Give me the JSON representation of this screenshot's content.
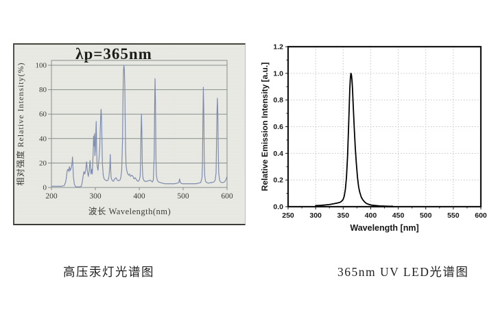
{
  "mercury": {
    "caption": "高压汞灯光谱图",
    "title": "λp=365nm"
  },
  "led": {
    "caption": "365nm UV LED光谱图"
  },
  "colors": {
    "scan_background": "#e9e9e3",
    "scan_border": "#45443d",
    "mercury_grid": "#868f8c",
    "mercury_curve": "#7d8cae",
    "mercury_text": "#3a3a36",
    "led_frame": "#141414",
    "led_grid": "#c4c4c4",
    "led_curve": "#000000",
    "led_text": "#161616"
  },
  "chart_data": [
    {
      "type": "line",
      "title": "λp=365nm",
      "xlabel": "波长    Wavelength(nm)",
      "ylabel": "相对强度   Relative  Intensity(%)",
      "xlim": [
        200,
        600
      ],
      "ylim": [
        0,
        100
      ],
      "xticks": [
        200,
        300,
        400,
        500,
        600
      ],
      "yticks": [
        0,
        20,
        40,
        60,
        80,
        100
      ],
      "grid": "horizontal",
      "legend": "none",
      "series": [
        {
          "name": "高压汞灯光谱 (high-pressure mercury lamp spectrum)",
          "points": [
            [
              200,
              1
            ],
            [
              212,
              1
            ],
            [
              224,
              1
            ],
            [
              229,
              1.5
            ],
            [
              232,
              4
            ],
            [
              234,
              8
            ],
            [
              236,
              14
            ],
            [
              238,
              15
            ],
            [
              240,
              13
            ],
            [
              241,
              17
            ],
            [
              243,
              14
            ],
            [
              245,
              16
            ],
            [
              247,
              20
            ],
            [
              248,
              25
            ],
            [
              249,
              17
            ],
            [
              250,
              9
            ],
            [
              252,
              3
            ],
            [
              254,
              1
            ],
            [
              257,
              0.5
            ],
            [
              261,
              0.5
            ],
            [
              265,
              0.5
            ],
            [
              268,
              1
            ],
            [
              270,
              4
            ],
            [
              272,
              9
            ],
            [
              274,
              13
            ],
            [
              276,
              11
            ],
            [
              278,
              14
            ],
            [
              280,
              21
            ],
            [
              282,
              13
            ],
            [
              284,
              9
            ],
            [
              286,
              14
            ],
            [
              288,
              22
            ],
            [
              290,
              11
            ],
            [
              292,
              15
            ],
            [
              293,
              11
            ],
            [
              295,
              28
            ],
            [
              296,
              42
            ],
            [
              297,
              34
            ],
            [
              298,
              44
            ],
            [
              299,
              26
            ],
            [
              300,
              31
            ],
            [
              301,
              44
            ],
            [
              302,
              54
            ],
            [
              303,
              30
            ],
            [
              304,
              18
            ],
            [
              306,
              14
            ],
            [
              308,
              22
            ],
            [
              310,
              32
            ],
            [
              311,
              45
            ],
            [
              312,
              56
            ],
            [
              313,
              64
            ],
            [
              314,
              58
            ],
            [
              315,
              40
            ],
            [
              316,
              20
            ],
            [
              318,
              10
            ],
            [
              320,
              7
            ],
            [
              323,
              6
            ],
            [
              326,
              5.5
            ],
            [
              329,
              6
            ],
            [
              331,
              9
            ],
            [
              333,
              17
            ],
            [
              334,
              27
            ],
            [
              335,
              14
            ],
            [
              336,
              8
            ],
            [
              338,
              6
            ],
            [
              341,
              5
            ],
            [
              344,
              7
            ],
            [
              347,
              8
            ],
            [
              350,
              6
            ],
            [
              353,
              5.5
            ],
            [
              356,
              6
            ],
            [
              358,
              8
            ],
            [
              360,
              14
            ],
            [
              362,
              40
            ],
            [
              363,
              75
            ],
            [
              364,
              95
            ],
            [
              365,
              100
            ],
            [
              366,
              97
            ],
            [
              367,
              85
            ],
            [
              368,
              55
            ],
            [
              369,
              30
            ],
            [
              370,
              18
            ],
            [
              372,
              13
            ],
            [
              374,
              11
            ],
            [
              376,
              10
            ],
            [
              378,
              11
            ],
            [
              380,
              9
            ],
            [
              383,
              10
            ],
            [
              386,
              9
            ],
            [
              388,
              7
            ],
            [
              391,
              8
            ],
            [
              394,
              6
            ],
            [
              397,
              5
            ],
            [
              400,
              6
            ],
            [
              402,
              9
            ],
            [
              403,
              20
            ],
            [
              404,
              45
            ],
            [
              405,
              60
            ],
            [
              406,
              45
            ],
            [
              407,
              18
            ],
            [
              408,
              9
            ],
            [
              410,
              6
            ],
            [
              413,
              5
            ],
            [
              417,
              5
            ],
            [
              421,
              5.5
            ],
            [
              425,
              6
            ],
            [
              428,
              5
            ],
            [
              430,
              4.5
            ],
            [
              432,
              6
            ],
            [
              434,
              25
            ],
            [
              435,
              65
            ],
            [
              436,
              89
            ],
            [
              437,
              70
            ],
            [
              438,
              25
            ],
            [
              439,
              10
            ],
            [
              441,
              6
            ],
            [
              444,
              4.5
            ],
            [
              448,
              4
            ],
            [
              453,
              3.5
            ],
            [
              459,
              3
            ],
            [
              466,
              3
            ],
            [
              473,
              3
            ],
            [
              480,
              3
            ],
            [
              486,
              3.5
            ],
            [
              490,
              4
            ],
            [
              492,
              7
            ],
            [
              493,
              4.5
            ],
            [
              495,
              3.5
            ],
            [
              499,
              3
            ],
            [
              505,
              3
            ],
            [
              512,
              3
            ],
            [
              520,
              3
            ],
            [
              528,
              3
            ],
            [
              535,
              3.5
            ],
            [
              540,
              4
            ],
            [
              543,
              8
            ],
            [
              544,
              20
            ],
            [
              545,
              55
            ],
            [
              546,
              82
            ],
            [
              547,
              65
            ],
            [
              548,
              25
            ],
            [
              549,
              10
            ],
            [
              551,
              5
            ],
            [
              554,
              4
            ],
            [
              558,
              3.5
            ],
            [
              562,
              4
            ],
            [
              566,
              4
            ],
            [
              570,
              4.5
            ],
            [
              573,
              6
            ],
            [
              575,
              12
            ],
            [
              576,
              35
            ],
            [
              577,
              60
            ],
            [
              578,
              73
            ],
            [
              579,
              60
            ],
            [
              580,
              30
            ],
            [
              581,
              12
            ],
            [
              583,
              6
            ],
            [
              585,
              4.5
            ],
            [
              588,
              4
            ],
            [
              591,
              4
            ],
            [
              594,
              4.5
            ],
            [
              597,
              6
            ],
            [
              599,
              8
            ],
            [
              600,
              9
            ]
          ]
        }
      ]
    },
    {
      "type": "line",
      "title": "",
      "xlabel": "Wavelength [nm]",
      "ylabel": "Relative Emission Intensity [a.u.]",
      "xlim": [
        250,
        600
      ],
      "ylim": [
        0,
        1.2
      ],
      "xticks": [
        250,
        300,
        350,
        400,
        450,
        500,
        550,
        600
      ],
      "yticks": [
        0,
        0.2,
        0.4,
        0.6,
        0.8,
        1.0,
        1.2
      ],
      "ytick_labels": [
        "0.0",
        "0.2",
        "0.4",
        "0.6",
        "0.8",
        "1.0",
        "1.2"
      ],
      "grid": "dotted-both",
      "legend": "none",
      "series": [
        {
          "name": "365nm UV LED",
          "points": [
            [
              300,
              0.008
            ],
            [
              305,
              0.009
            ],
            [
              310,
              0.01
            ],
            [
              315,
              0.012
            ],
            [
              320,
              0.014
            ],
            [
              325,
              0.016
            ],
            [
              330,
              0.02
            ],
            [
              335,
              0.024
            ],
            [
              340,
              0.028
            ],
            [
              344,
              0.032
            ],
            [
              347,
              0.04
            ],
            [
              350,
              0.055
            ],
            [
              352,
              0.08
            ],
            [
              354,
              0.13
            ],
            [
              356,
              0.22
            ],
            [
              358,
              0.38
            ],
            [
              360,
              0.62
            ],
            [
              361,
              0.75
            ],
            [
              362,
              0.88
            ],
            [
              363,
              0.96
            ],
            [
              364,
              1.0
            ],
            [
              365,
              0.99
            ],
            [
              366,
              0.95
            ],
            [
              367,
              0.88
            ],
            [
              368,
              0.78
            ],
            [
              370,
              0.6
            ],
            [
              372,
              0.44
            ],
            [
              374,
              0.32
            ],
            [
              376,
              0.22
            ],
            [
              378,
              0.15
            ],
            [
              380,
              0.11
            ],
            [
              383,
              0.07
            ],
            [
              386,
              0.05
            ],
            [
              389,
              0.035
            ],
            [
              392,
              0.025
            ],
            [
              396,
              0.018
            ],
            [
              400,
              0.013
            ],
            [
              405,
              0.01
            ],
            [
              410,
              0.008
            ],
            [
              416,
              0.006
            ],
            [
              422,
              0.005
            ],
            [
              428,
              0.004
            ],
            [
              434,
              0.003
            ],
            [
              440,
              0.003
            ]
          ]
        }
      ]
    }
  ]
}
